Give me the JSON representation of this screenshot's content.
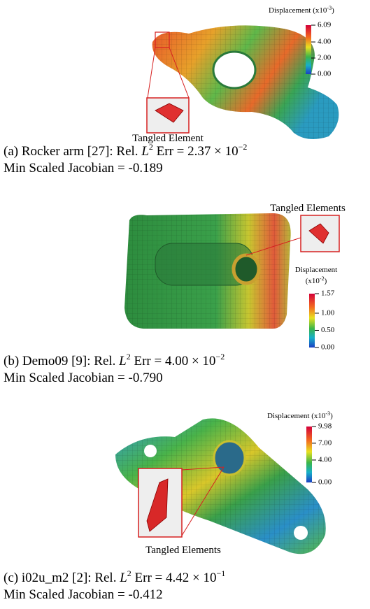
{
  "panels": [
    {
      "colorbar": {
        "title": "Displacement (x10",
        "exponent": "-3",
        "close": ")",
        "ticks": [
          {
            "value": 6.09,
            "label": "6.09"
          },
          {
            "value": 4,
            "label": "4.00"
          },
          {
            "value": 2,
            "label": "2.00"
          },
          {
            "value": 0,
            "label": "0.00"
          }
        ]
      },
      "annotation": "Tangled Element",
      "caption": {
        "prefix": "(a) Rocker arm [27]: Rel. ",
        "symbol": "L",
        "power": "2",
        "err": " Err = 2.37 × 10",
        "exponent": "−2",
        "line2": "Min Scaled Jacobian = -0.189"
      }
    },
    {
      "colorbar": {
        "title": "Displacement",
        "unit": "(x10",
        "exponent": "-2",
        "close": ")",
        "ticks": [
          {
            "value": 1.57,
            "label": "1.57"
          },
          {
            "value": 1,
            "label": "1.00"
          },
          {
            "value": 0.5,
            "label": "0.50"
          },
          {
            "value": 0,
            "label": "0.00"
          }
        ]
      },
      "annotation": "Tangled Elements",
      "caption": {
        "prefix": "(b) Demo09 [9]: Rel. ",
        "symbol": "L",
        "power": "2",
        "err": " Err = 4.00 × 10",
        "exponent": "−2",
        "line2": "Min Scaled Jacobian = -0.790"
      }
    },
    {
      "colorbar": {
        "title": "Displacement (x10",
        "exponent": "-3",
        "close": ")",
        "ticks": [
          {
            "value": 9.98,
            "label": "9.98"
          },
          {
            "value": 7,
            "label": "7.00"
          },
          {
            "value": 4,
            "label": "4.00"
          },
          {
            "value": 0,
            "label": "0.00"
          }
        ]
      },
      "annotation": "Tangled Elements",
      "caption": {
        "prefix": "(c) i02u_m2 [2]: Rel. ",
        "symbol": "L",
        "power": "2",
        "err": " Err = 4.42 × 10",
        "exponent": "−1",
        "line2": "Min Scaled Jacobian = -0.412"
      }
    }
  ]
}
